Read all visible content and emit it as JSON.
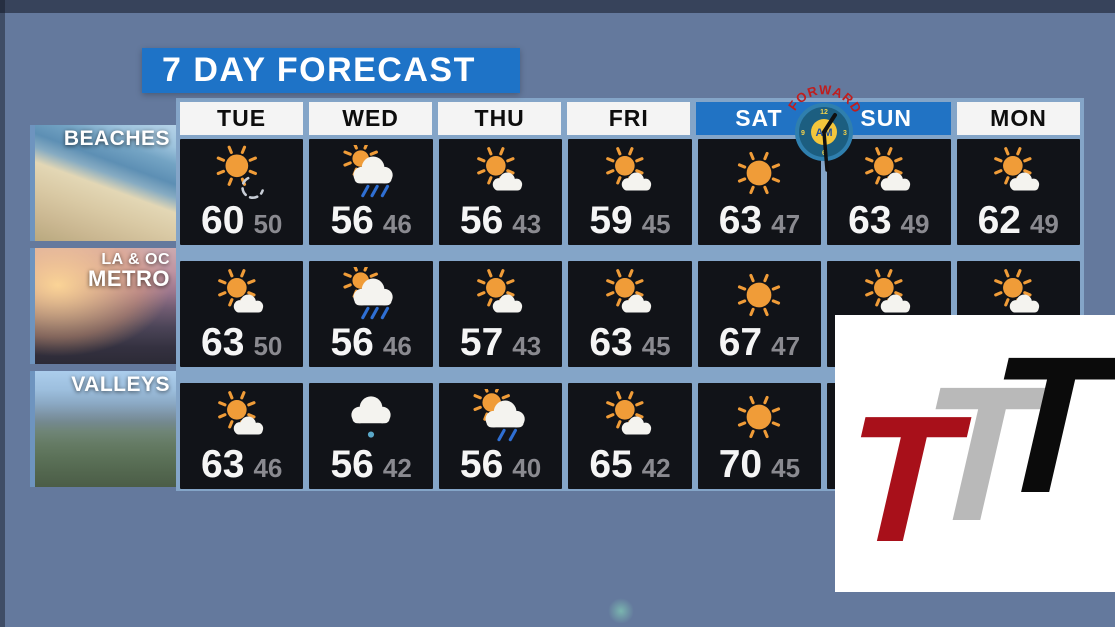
{
  "title": "7 DAY FORECAST",
  "days": [
    "TUE",
    "WED",
    "THU",
    "FRI",
    "SAT",
    "SUN",
    "MON"
  ],
  "weekend_days": [
    "SAT",
    "SUN"
  ],
  "dst_badge": {
    "text": "FORWARD",
    "clock_label": "AM"
  },
  "regions": [
    {
      "label_lines": [
        "BEACHES"
      ],
      "photo": "beach"
    },
    {
      "label_lines": [
        "LA & OC",
        "METRO"
      ],
      "photo": "metro"
    },
    {
      "label_lines": [
        "VALLEYS"
      ],
      "photo": "valley"
    }
  ],
  "chart_data": {
    "type": "table",
    "title": "7 DAY FORECAST",
    "columns": [
      "TUE",
      "WED",
      "THU",
      "FRI",
      "SAT",
      "SUN",
      "MON"
    ],
    "rows": [
      {
        "region": "BEACHES",
        "cells": [
          {
            "day": "TUE",
            "icon": "sun-wind",
            "high": 60,
            "low": 50
          },
          {
            "day": "WED",
            "icon": "sun-rain",
            "high": 56,
            "low": 46
          },
          {
            "day": "THU",
            "icon": "mostly-sunny",
            "high": 56,
            "low": 43
          },
          {
            "day": "FRI",
            "icon": "mostly-sunny",
            "high": 59,
            "low": 45
          },
          {
            "day": "SAT",
            "icon": "sunny",
            "high": 63,
            "low": 47
          },
          {
            "day": "SUN",
            "icon": "mostly-sunny",
            "high": 63,
            "low": 49
          },
          {
            "day": "MON",
            "icon": "mostly-sunny",
            "high": 62,
            "low": 49
          }
        ]
      },
      {
        "region": "LA & OC METRO",
        "cells": [
          {
            "day": "TUE",
            "icon": "mostly-sunny",
            "high": 63,
            "low": 50
          },
          {
            "day": "WED",
            "icon": "sun-rain",
            "high": 56,
            "low": 46
          },
          {
            "day": "THU",
            "icon": "mostly-sunny",
            "high": 57,
            "low": 43
          },
          {
            "day": "FRI",
            "icon": "mostly-sunny",
            "high": 63,
            "low": 45
          },
          {
            "day": "SAT",
            "icon": "sunny",
            "high": 67,
            "low": 47
          },
          {
            "day": "SUN",
            "icon": "mostly-sunny",
            "high": null,
            "low": null,
            "obscured": true
          },
          {
            "day": "MON",
            "icon": "mostly-sunny",
            "high": null,
            "low": null,
            "obscured": true
          }
        ]
      },
      {
        "region": "VALLEYS",
        "cells": [
          {
            "day": "TUE",
            "icon": "mostly-sunny",
            "high": 63,
            "low": 46
          },
          {
            "day": "WED",
            "icon": "cloud-drizzle",
            "high": 56,
            "low": 42
          },
          {
            "day": "THU",
            "icon": "sun-showers",
            "high": 56,
            "low": 40
          },
          {
            "day": "FRI",
            "icon": "mostly-sunny",
            "high": 65,
            "low": 42
          },
          {
            "day": "SAT",
            "icon": "sunny",
            "high": 70,
            "low": 45
          },
          {
            "day": "SUN",
            "icon": null,
            "high": null,
            "low": null,
            "obscured": true
          },
          {
            "day": "MON",
            "icon": null,
            "high": null,
            "low": null,
            "obscured": true
          }
        ]
      }
    ]
  },
  "logo": {
    "letters": [
      {
        "glyph": "T",
        "color": "#a8101a"
      },
      {
        "glyph": "T",
        "color": "#b9b9b9"
      },
      {
        "glyph": "T",
        "color": "#0b0b0b"
      }
    ]
  },
  "colors": {
    "title_bar": "#1e73c7",
    "weekend_header": "#2173c4",
    "header_bg": "#f4f4f4",
    "cell_bg": "#0d0d11",
    "high_temp": "#f5f5f5",
    "low_temp": "#8a8a90",
    "sun": "#f09c38",
    "rain": "#2f6fd3",
    "panel": "#84a5c8"
  }
}
